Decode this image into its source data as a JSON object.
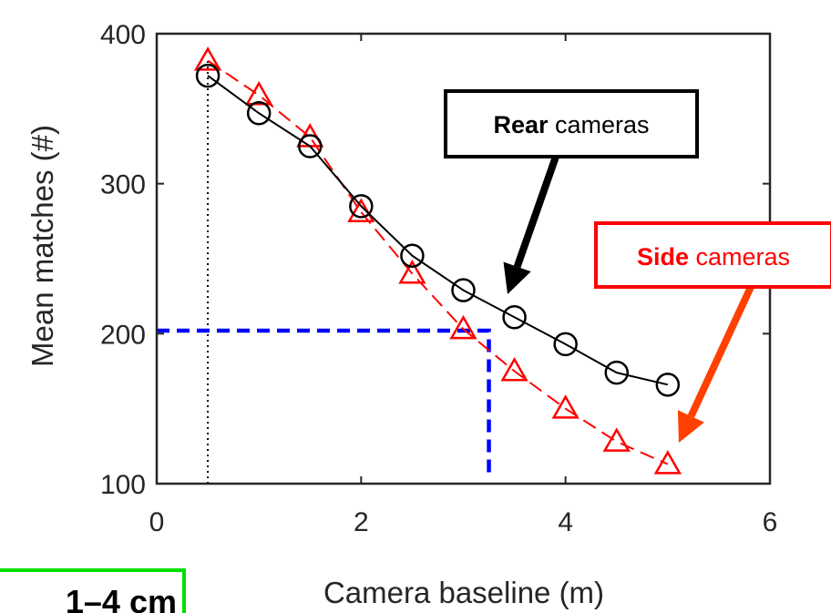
{
  "chart_data": {
    "type": "line",
    "xlabel": "Camera baseline (m)",
    "ylabel": "Mean matches (#)",
    "xlim": [
      0,
      6
    ],
    "ylim": [
      100,
      400
    ],
    "xticks": [
      "0",
      "2",
      "4",
      "6"
    ],
    "yticks": [
      "100",
      "200",
      "300",
      "400"
    ],
    "grid": false,
    "series": [
      {
        "name": "Rear cameras",
        "color": "#000000",
        "marker": "circle",
        "line_style": "solid",
        "x": [
          0.5,
          1.0,
          1.5,
          2.0,
          2.5,
          3.0,
          3.5,
          4.0,
          4.5,
          5.0
        ],
        "y": [
          372,
          347,
          325,
          285,
          252,
          229,
          211,
          193,
          174,
          166
        ]
      },
      {
        "name": "Side cameras",
        "color": "#ff0000",
        "marker": "triangle",
        "line_style": "dashed",
        "x": [
          0.5,
          1.0,
          1.5,
          2.0,
          2.5,
          3.0,
          3.5,
          4.0,
          4.5,
          5.0
        ],
        "y": [
          382,
          359,
          331,
          281,
          240,
          203,
          175,
          150,
          128,
          113
        ]
      }
    ],
    "reference_lines": {
      "vertical_dotted_x": 0.5,
      "threshold_y": 202,
      "threshold_x": 3.25,
      "threshold_color": "#0000ff"
    },
    "annotations": [
      {
        "bold": "Rear",
        "rest": " cameras",
        "color": "#000000",
        "arrow_color": "#000000"
      },
      {
        "bold": "Side",
        "rest": " cameras",
        "color": "#ff0000",
        "arrow_color": "#ff4000"
      }
    ],
    "cut_off_label": "1–4 cm",
    "cut_off_box_color": "#00e000"
  }
}
